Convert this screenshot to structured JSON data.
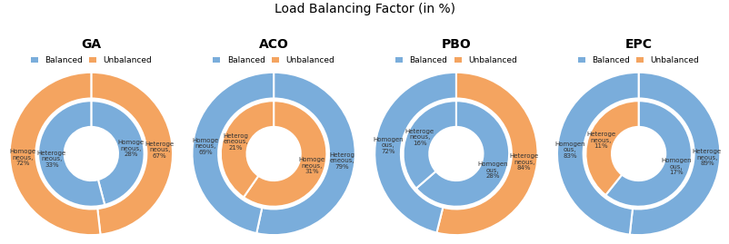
{
  "title": "Load Balancing Factor (in %)",
  "chart_data": [
    {
      "type": "pie",
      "title": "GA",
      "legend": "upper center",
      "legend_entries": [
        {
          "name": "Balanced",
          "color": "#7aaddb"
        },
        {
          "name": "Unbalanced",
          "color": "#f4a460"
        }
      ],
      "series": [
        {
          "values": [
            67,
            72
          ],
          "colors": [
            "#f4a460",
            "#f4a460"
          ],
          "labels": [
            "Heteroge\nneous,\n67%",
            "Homoge\nneous,\n72%"
          ]
        },
        {
          "values": [
            28,
            33
          ],
          "colors": [
            "#7aaddb",
            "#7aaddb"
          ],
          "labels": [
            "Homoge\nneous,\n28%",
            "Heteroge\nneous,\n33%"
          ]
        }
      ]
    },
    {
      "type": "pie",
      "title": "ACO",
      "legend": "upper center",
      "legend_entries": [
        {
          "name": "Balanced",
          "color": "#7aaddb"
        },
        {
          "name": "Unbalanced",
          "color": "#f4a460"
        }
      ],
      "series": [
        {
          "values": [
            79,
            69
          ],
          "colors": [
            "#7aaddb",
            "#7aaddb"
          ],
          "labels": [
            "Heterog\neneous,\n79%",
            "Homoge\nneous,\n69%"
          ]
        },
        {
          "values": [
            31,
            21
          ],
          "colors": [
            "#f4a460",
            "#f4a460"
          ],
          "labels": [
            "Homoge\nneous,\n31%",
            "Heterog\neneous,\n21%"
          ]
        }
      ]
    },
    {
      "type": "pie",
      "title": "PBO",
      "legend": "upper center",
      "legend_entries": [
        {
          "name": "Balanced",
          "color": "#7aaddb"
        },
        {
          "name": "Unbalanced",
          "color": "#f4a460"
        }
      ],
      "series": [
        {
          "values": [
            84,
            72
          ],
          "colors": [
            "#f4a460",
            "#7aaddb"
          ],
          "labels": [
            "Heteroge\nneous,\n84%",
            "Homogen\nous,\n72%"
          ]
        },
        {
          "values": [
            28,
            16
          ],
          "colors": [
            "#7aaddb",
            "#7aaddb"
          ],
          "labels": [
            "Homogen\nous,\n28%",
            "Heteroge\nneous,\n16%"
          ]
        }
      ]
    },
    {
      "type": "pie",
      "title": "EPC",
      "legend": "upper center",
      "legend_entries": [
        {
          "name": "Balanced",
          "color": "#7aaddb"
        },
        {
          "name": "Unbalanced",
          "color": "#f4a460"
        }
      ],
      "series": [
        {
          "values": [
            89,
            83
          ],
          "colors": [
            "#7aaddb",
            "#7aaddb"
          ],
          "labels": [
            "Heteroge\nneous,\n89%",
            "Homogen\nous,\n83%"
          ]
        },
        {
          "values": [
            17,
            11
          ],
          "colors": [
            "#7aaddb",
            "#f4a460"
          ],
          "labels": [
            "Homogen\nous,\n17%",
            "Heteroge\nneous,\n11%"
          ]
        }
      ]
    }
  ]
}
